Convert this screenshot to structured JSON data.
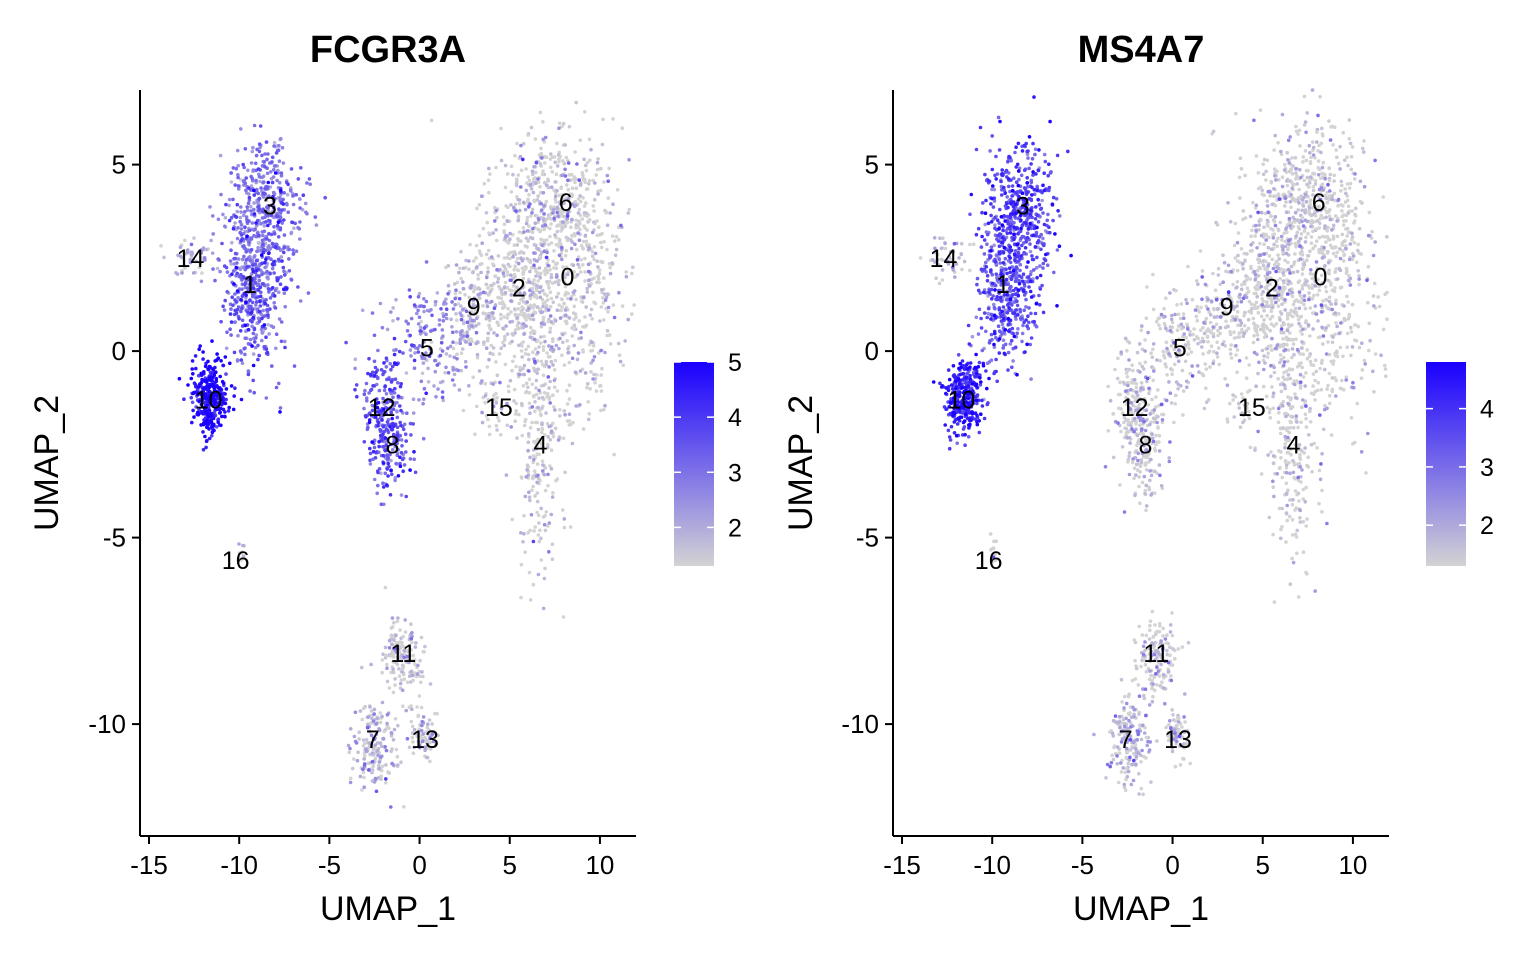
{
  "chart_data": [
    {
      "type": "scatter",
      "title": "FCGR3A",
      "xlabel": "UMAP_1",
      "ylabel": "UMAP_2",
      "xlim": [
        -15.5,
        12
      ],
      "ylim": [
        -13,
        7
      ],
      "xticks": [
        -15,
        -10,
        -5,
        0,
        5,
        10
      ],
      "xtick_labels": [
        "-15",
        "-10",
        "-5",
        "0",
        "5",
        "10"
      ],
      "yticks": [
        5,
        0,
        -5,
        -10
      ],
      "ytick_labels": [
        "5",
        "0",
        "-5",
        "-10"
      ],
      "color_low": "#d3d3d3",
      "color_high": "#1a00ff",
      "legend": {
        "placement": "right",
        "min": 1.3,
        "max": 5,
        "ticks": [
          2,
          3,
          4,
          5
        ],
        "tick_labels": [
          "2",
          "3",
          "4",
          "5"
        ]
      },
      "cluster_labels": [
        {
          "text": "0",
          "x": 8.2,
          "y": 2.0
        },
        {
          "text": "1",
          "x": -9.4,
          "y": 1.8
        },
        {
          "text": "2",
          "x": 5.5,
          "y": 1.7
        },
        {
          "text": "3",
          "x": -8.3,
          "y": 3.9
        },
        {
          "text": "4",
          "x": 6.7,
          "y": -2.5
        },
        {
          "text": "5",
          "x": 0.4,
          "y": 0.1
        },
        {
          "text": "6",
          "x": 8.1,
          "y": 4.0
        },
        {
          "text": "7",
          "x": -2.6,
          "y": -10.4
        },
        {
          "text": "8",
          "x": -1.5,
          "y": -2.5
        },
        {
          "text": "9",
          "x": 3.0,
          "y": 1.2
        },
        {
          "text": "10",
          "x": -11.7,
          "y": -1.3
        },
        {
          "text": "11",
          "x": -0.9,
          "y": -8.1
        },
        {
          "text": "12",
          "x": -2.1,
          "y": -1.5
        },
        {
          "text": "13",
          "x": 0.3,
          "y": -10.4
        },
        {
          "text": "14",
          "x": -12.7,
          "y": 2.5
        },
        {
          "text": "15",
          "x": 4.4,
          "y": -1.5
        },
        {
          "text": "16",
          "x": -10.2,
          "y": -5.6
        }
      ],
      "clusters": [
        {
          "id": 0,
          "cx": 8.0,
          "cy": 2.0,
          "sx": 1.9,
          "sy": 1.9,
          "n": 700,
          "expr": 1.2
        },
        {
          "id": 6,
          "cx": 7.5,
          "cy": 4.1,
          "sx": 1.4,
          "sy": 0.8,
          "n": 260,
          "expr": 1.3
        },
        {
          "id": 2,
          "cx": 5.2,
          "cy": 1.6,
          "sx": 1.2,
          "sy": 1.2,
          "n": 320,
          "expr": 1.3
        },
        {
          "id": 4,
          "cx": 6.6,
          "cy": -2.6,
          "sx": 0.7,
          "sy": 1.6,
          "n": 220,
          "expr": 1.3
        },
        {
          "id": 9,
          "cx": 2.9,
          "cy": 1.0,
          "sx": 1.0,
          "sy": 0.7,
          "n": 140,
          "expr": 1.6
        },
        {
          "id": 5,
          "cx": 0.4,
          "cy": 0.1,
          "sx": 1.2,
          "sy": 0.8,
          "n": 170,
          "expr": 2.5
        },
        {
          "id": 12,
          "cx": -2.1,
          "cy": -1.4,
          "sx": 0.6,
          "sy": 0.7,
          "n": 150,
          "expr": 3.5
        },
        {
          "id": 8,
          "cx": -1.6,
          "cy": -2.6,
          "sx": 0.6,
          "sy": 0.7,
          "n": 150,
          "expr": 3.2
        },
        {
          "id": 15,
          "cx": 3.9,
          "cy": -1.6,
          "sx": 0.5,
          "sy": 0.4,
          "n": 30,
          "expr": 1.2
        },
        {
          "id": 3,
          "cx": -8.5,
          "cy": 3.8,
          "sx": 1.0,
          "sy": 0.9,
          "n": 420,
          "expr": 2.8
        },
        {
          "id": 1,
          "cx": -9.1,
          "cy": 1.6,
          "sx": 0.9,
          "sy": 1.0,
          "n": 420,
          "expr": 3.1
        },
        {
          "id": 14,
          "cx": -12.5,
          "cy": 2.5,
          "sx": 0.6,
          "sy": 0.3,
          "n": 50,
          "expr": 1.8
        },
        {
          "id": 10,
          "cx": -11.6,
          "cy": -1.2,
          "sx": 0.5,
          "sy": 0.5,
          "n": 330,
          "expr": 4.6
        },
        {
          "id": 16,
          "cx": -9.9,
          "cy": -5.3,
          "sx": 0.1,
          "sy": 0.2,
          "n": 12,
          "expr": 1.2
        },
        {
          "id": 11,
          "cx": -0.9,
          "cy": -8.2,
          "sx": 0.6,
          "sy": 0.6,
          "n": 160,
          "expr": 1.3
        },
        {
          "id": 7,
          "cx": -2.5,
          "cy": -10.5,
          "sx": 0.6,
          "sy": 0.6,
          "n": 180,
          "expr": 1.6
        },
        {
          "id": 13,
          "cx": 0.2,
          "cy": -10.3,
          "sx": 0.4,
          "sy": 0.3,
          "n": 70,
          "expr": 1.3
        }
      ]
    },
    {
      "type": "scatter",
      "title": "MS4A7",
      "xlabel": "UMAP_1",
      "ylabel": "UMAP_2",
      "xlim": [
        -15.5,
        12
      ],
      "ylim": [
        -13,
        7
      ],
      "xticks": [
        -15,
        -10,
        -5,
        0,
        5,
        10
      ],
      "xtick_labels": [
        "-15",
        "-10",
        "-5",
        "0",
        "5",
        "10"
      ],
      "yticks": [
        5,
        0,
        -5,
        -10
      ],
      "ytick_labels": [
        "5",
        "0",
        "-5",
        "-10"
      ],
      "color_low": "#d3d3d3",
      "color_high": "#1a00ff",
      "legend": {
        "placement": "right",
        "min": 1.3,
        "max": 4.8,
        "ticks": [
          2,
          3,
          4
        ],
        "tick_labels": [
          "2",
          "3",
          "4"
        ]
      },
      "cluster_labels": [
        {
          "text": "0",
          "x": 8.2,
          "y": 2.0
        },
        {
          "text": "1",
          "x": -9.4,
          "y": 1.8
        },
        {
          "text": "2",
          "x": 5.5,
          "y": 1.7
        },
        {
          "text": "3",
          "x": -8.3,
          "y": 3.9
        },
        {
          "text": "4",
          "x": 6.7,
          "y": -2.5
        },
        {
          "text": "5",
          "x": 0.4,
          "y": 0.1
        },
        {
          "text": "6",
          "x": 8.1,
          "y": 4.0
        },
        {
          "text": "7",
          "x": -2.6,
          "y": -10.4
        },
        {
          "text": "8",
          "x": -1.5,
          "y": -2.5
        },
        {
          "text": "9",
          "x": 3.0,
          "y": 1.2
        },
        {
          "text": "10",
          "x": -11.7,
          "y": -1.3
        },
        {
          "text": "11",
          "x": -0.9,
          "y": -8.1
        },
        {
          "text": "12",
          "x": -2.1,
          "y": -1.5
        },
        {
          "text": "13",
          "x": 0.3,
          "y": -10.4
        },
        {
          "text": "14",
          "x": -12.7,
          "y": 2.5
        },
        {
          "text": "15",
          "x": 4.4,
          "y": -1.5
        },
        {
          "text": "16",
          "x": -10.2,
          "y": -5.6
        }
      ],
      "clusters": [
        {
          "id": 0,
          "cx": 8.0,
          "cy": 2.0,
          "sx": 1.9,
          "sy": 1.9,
          "n": 700,
          "expr": 1.2
        },
        {
          "id": 6,
          "cx": 7.5,
          "cy": 4.1,
          "sx": 1.4,
          "sy": 0.8,
          "n": 260,
          "expr": 1.2
        },
        {
          "id": 2,
          "cx": 5.2,
          "cy": 1.6,
          "sx": 1.2,
          "sy": 1.2,
          "n": 320,
          "expr": 1.2
        },
        {
          "id": 4,
          "cx": 6.6,
          "cy": -2.6,
          "sx": 0.7,
          "sy": 1.6,
          "n": 220,
          "expr": 1.2
        },
        {
          "id": 9,
          "cx": 2.9,
          "cy": 1.0,
          "sx": 1.0,
          "sy": 0.7,
          "n": 140,
          "expr": 1.2
        },
        {
          "id": 5,
          "cx": 0.4,
          "cy": 0.1,
          "sx": 1.2,
          "sy": 0.8,
          "n": 170,
          "expr": 1.2
        },
        {
          "id": 12,
          "cx": -2.1,
          "cy": -1.4,
          "sx": 0.6,
          "sy": 0.7,
          "n": 150,
          "expr": 1.3
        },
        {
          "id": 8,
          "cx": -1.6,
          "cy": -2.6,
          "sx": 0.6,
          "sy": 0.7,
          "n": 150,
          "expr": 1.3
        },
        {
          "id": 15,
          "cx": 3.9,
          "cy": -1.6,
          "sx": 0.5,
          "sy": 0.4,
          "n": 30,
          "expr": 1.2
        },
        {
          "id": 3,
          "cx": -8.5,
          "cy": 3.8,
          "sx": 1.0,
          "sy": 0.9,
          "n": 420,
          "expr": 3.6
        },
        {
          "id": 1,
          "cx": -9.1,
          "cy": 1.6,
          "sx": 0.9,
          "sy": 1.0,
          "n": 420,
          "expr": 3.3
        },
        {
          "id": 14,
          "cx": -12.5,
          "cy": 2.5,
          "sx": 0.6,
          "sy": 0.3,
          "n": 50,
          "expr": 1.6
        },
        {
          "id": 10,
          "cx": -11.6,
          "cy": -1.2,
          "sx": 0.5,
          "sy": 0.5,
          "n": 330,
          "expr": 4.1
        },
        {
          "id": 16,
          "cx": -9.9,
          "cy": -5.3,
          "sx": 0.1,
          "sy": 0.2,
          "n": 12,
          "expr": 1.2
        },
        {
          "id": 11,
          "cx": -0.9,
          "cy": -8.2,
          "sx": 0.6,
          "sy": 0.6,
          "n": 160,
          "expr": 1.3
        },
        {
          "id": 7,
          "cx": -2.5,
          "cy": -10.5,
          "sx": 0.6,
          "sy": 0.6,
          "n": 180,
          "expr": 1.5
        },
        {
          "id": 13,
          "cx": 0.2,
          "cy": -10.3,
          "sx": 0.4,
          "sy": 0.3,
          "n": 70,
          "expr": 1.3
        }
      ]
    }
  ]
}
